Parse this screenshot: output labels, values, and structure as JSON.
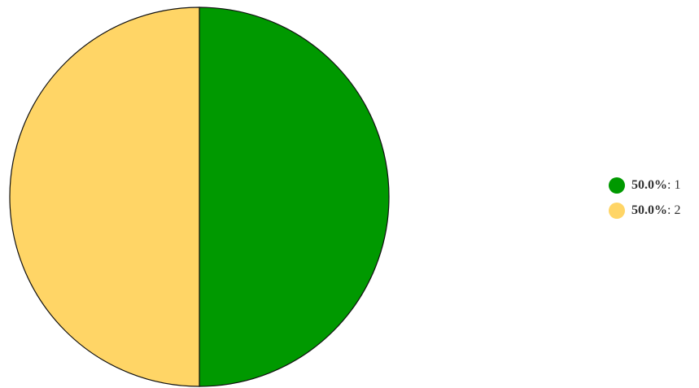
{
  "chart_data": {
    "type": "pie",
    "series": [
      {
        "label": "1",
        "value": 50.0,
        "percent_label": "50.0%",
        "color": "#009900"
      },
      {
        "label": "2",
        "value": 50.0,
        "percent_label": "50.0%",
        "color": "#ffd566"
      }
    ],
    "legend_position": "right"
  }
}
